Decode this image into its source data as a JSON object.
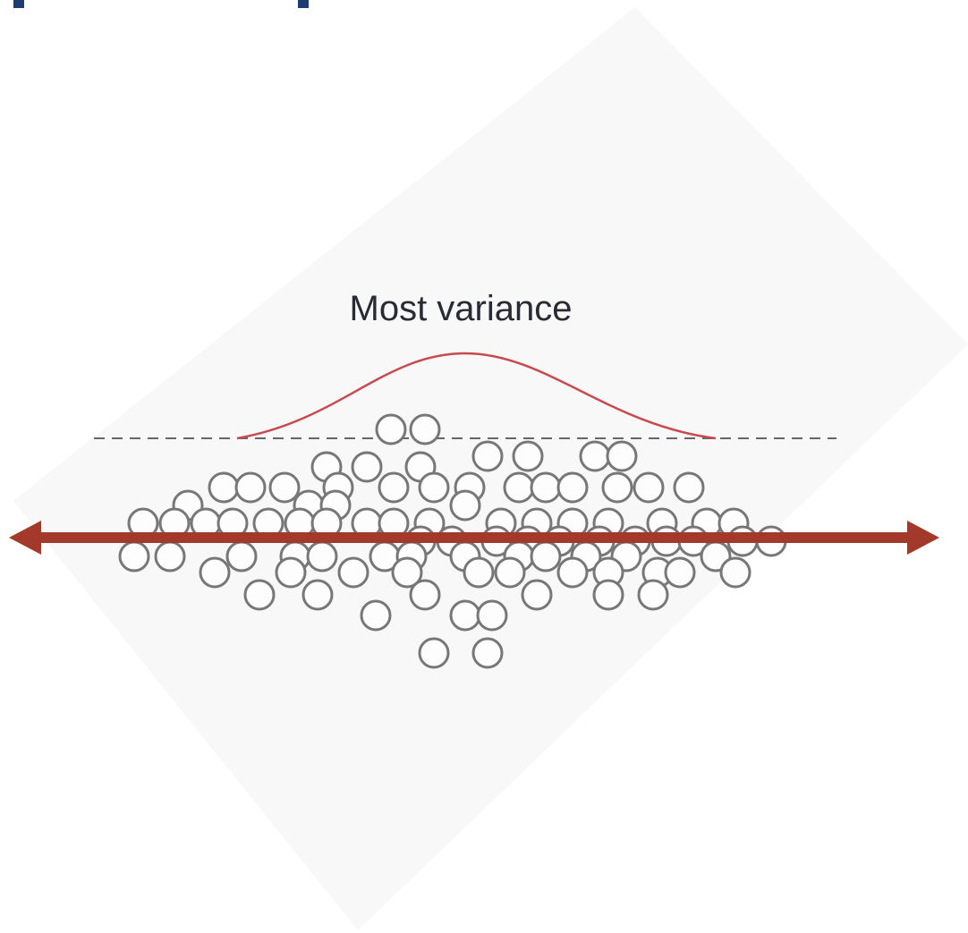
{
  "label": "Most variance"
}
